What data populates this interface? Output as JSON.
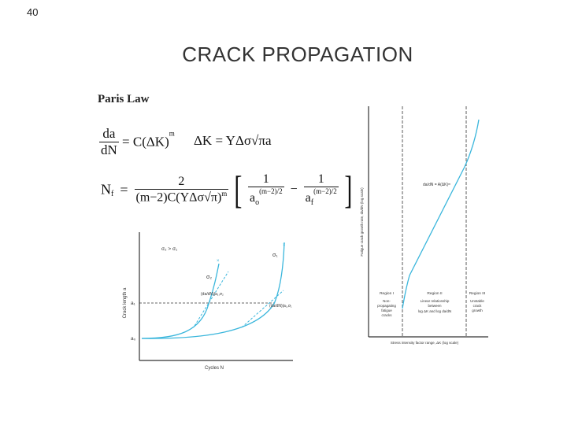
{
  "slide": {
    "number": "40",
    "title": "CRACK PROPAGATION"
  },
  "section": {
    "heading": "Paris Law"
  },
  "equations": {
    "rate_lhs_num": "da",
    "rate_lhs_den": "dN",
    "rate_rhs": "= C(ΔK)",
    "rate_exp": "m",
    "dk": "ΔK = YΔσ√πa",
    "nf_lhs": "N",
    "nf_sub": "f",
    "nf_eq": "=",
    "nf_coef_num": "2",
    "nf_coef_den": "(m−2)C(YΔσ√π)",
    "nf_coef_exp": "m",
    "term1_num": "1",
    "term1_den": "a",
    "term1_sub": "o",
    "term1_exp": "(m−2)/2",
    "minus": "−",
    "term2_num": "1",
    "term2_den": "a",
    "term2_sub": "f",
    "term2_exp": "(m−2)/2"
  },
  "left_chart": {
    "ylabel": "Crack length a",
    "xlabel": "Cycles N",
    "condition": "σ₂ > σ₁",
    "tick_a1": "a₁",
    "tick_a0": "a₀",
    "curve1_label": "σ₁",
    "curve2_label": "σ₂",
    "slope2_label": "(da/dN)|a₁,σ₂",
    "slope1_label": "(da/dN)|a₁,σ₁",
    "curve_color": "#3ab6dc"
  },
  "right_chart": {
    "ylabel": "Fatigue crack growth rate, da/dN (log scale)",
    "xlabel": "Stress intensity factor range, ΔK (log scale)",
    "equation": "da/dN = A(ΔK)ᵐ",
    "regions": [
      {
        "name": "Region I",
        "desc": [
          "Non-",
          "propagating",
          "fatigue",
          "cracks"
        ]
      },
      {
        "name": "Region II",
        "desc": [
          "Linear relationship",
          "between",
          "log ΔK and log da/dN"
        ]
      },
      {
        "name": "Region III",
        "desc": [
          "Unstable",
          "crack",
          "growth"
        ]
      }
    ],
    "curve_color": "#3ab6dc"
  }
}
